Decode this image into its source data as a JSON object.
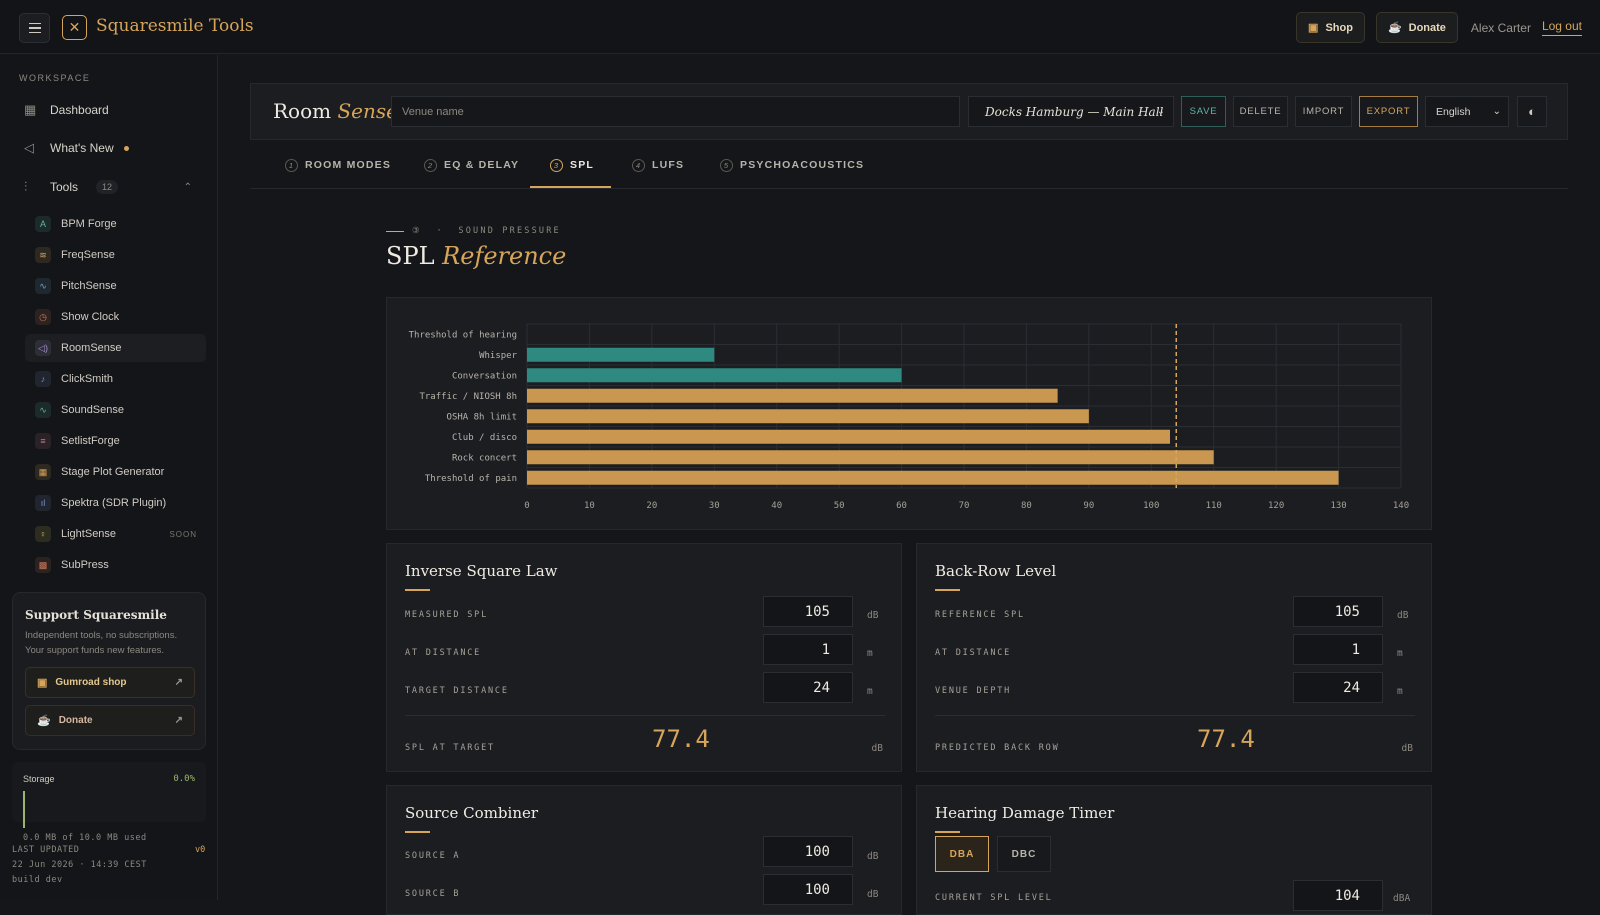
{
  "app": {
    "brand": "Squaresmile Tools",
    "shop_label": "Shop",
    "donate_label": "Donate",
    "user_name": "Alex Carter",
    "logout_label": "Log out"
  },
  "sidebar": {
    "workspace_label": "WORKSPACE",
    "nav": {
      "dashboard": "Dashboard",
      "whats_new": "What's New",
      "tools": "Tools",
      "tools_count": "12"
    },
    "tools": [
      {
        "label": "BPM Forge",
        "icon": "A",
        "color": "#5fb3a6"
      },
      {
        "label": "FreqSense",
        "icon": "≋",
        "color": "#d7a55a"
      },
      {
        "label": "PitchSense",
        "icon": "∿",
        "color": "#6fa3c7"
      },
      {
        "label": "Show Clock",
        "icon": "◷",
        "color": "#d07a5a"
      },
      {
        "label": "RoomSense",
        "icon": "◁)",
        "color": "#a493c9"
      },
      {
        "label": "ClickSmith",
        "icon": "♪",
        "color": "#7d8fd1"
      },
      {
        "label": "SoundSense",
        "icon": "∿",
        "color": "#5fb3a6"
      },
      {
        "label": "SetlistForge",
        "icon": "≡",
        "color": "#c77a8e"
      },
      {
        "label": "Stage Plot Generator",
        "icon": "▦",
        "color": "#d7a55a"
      },
      {
        "label": "Spektra (SDR Plugin)",
        "icon": "ıl",
        "color": "#7d8fd1"
      },
      {
        "label": "LightSense",
        "icon": "♀",
        "color": "#d7c55a",
        "badge": "SOON"
      },
      {
        "label": "SubPress",
        "icon": "▩",
        "color": "#d07a5a"
      }
    ],
    "support": {
      "title": "Support Squaresmile",
      "text": "Independent tools, no subscriptions. Your support funds new features.",
      "gumroad_label": "Gumroad shop",
      "donate_label": "Donate"
    },
    "storage": {
      "label": "Storage",
      "percent": "0.0%",
      "used_text": "0.0 MB of 10.0 MB used"
    },
    "last_updated_label": "LAST UPDATED",
    "last_updated_value": "22 Jun 2026 · 14:39 CEST",
    "build": "build dev",
    "version": "v0"
  },
  "header": {
    "title_plain": "Room",
    "title_accent": "Sense",
    "venue_placeholder": "Venue name",
    "venue_selected": "Docks Hamburg — Main Hall",
    "save": "SAVE",
    "delete": "DELETE",
    "import": "IMPORT",
    "export": "EXPORT",
    "language": "English"
  },
  "tabs": [
    {
      "num": "1",
      "label": "ROOM MODES"
    },
    {
      "num": "2",
      "label": "EQ & DELAY"
    },
    {
      "num": "3",
      "label": "SPL"
    },
    {
      "num": "4",
      "label": "LUFS"
    },
    {
      "num": "5",
      "label": "PSYCHOACOUSTICS"
    }
  ],
  "section": {
    "kicker_num": "③",
    "kicker_text": "SOUND PRESSURE",
    "title_plain": "SPL",
    "title_accent": "Reference"
  },
  "chart_data": {
    "type": "bar",
    "orientation": "horizontal",
    "categories": [
      "Threshold of hearing",
      "Whisper",
      "Conversation",
      "Traffic / NIOSH 8h",
      "OSHA 8h limit",
      "Club / disco",
      "Rock concert",
      "Threshold of pain"
    ],
    "values": [
      0,
      30,
      60,
      85,
      90,
      103,
      110,
      130
    ],
    "colors": [
      "#2e8a80",
      "#2e8a80",
      "#2e8a80",
      "#c9974f",
      "#c9974f",
      "#c9974f",
      "#c9974f",
      "#c9974f"
    ],
    "xlim": [
      0,
      140
    ],
    "xticks": [
      0,
      10,
      20,
      30,
      40,
      50,
      60,
      70,
      80,
      90,
      100,
      110,
      120,
      130,
      140
    ],
    "reference_line": 104,
    "grid": true
  },
  "inverse_square": {
    "title": "Inverse Square Law",
    "measured_label": "MEASURED SPL",
    "measured_value": "105",
    "measured_unit": "dB",
    "distance_label": "AT DISTANCE",
    "distance_value": "1",
    "distance_unit": "m",
    "target_label": "TARGET DISTANCE",
    "target_value": "24",
    "target_unit": "m",
    "result_label": "SPL AT TARGET",
    "result_value": "77.4",
    "result_unit": "dB"
  },
  "back_row": {
    "title": "Back-Row Level",
    "ref_label": "REFERENCE SPL",
    "ref_value": "105",
    "ref_unit": "dB",
    "distance_label": "AT DISTANCE",
    "distance_value": "1",
    "distance_unit": "m",
    "depth_label": "VENUE DEPTH",
    "depth_value": "24",
    "depth_unit": "m",
    "result_label": "PREDICTED BACK ROW",
    "result_value": "77.4",
    "result_unit": "dB"
  },
  "source_combiner": {
    "title": "Source Combiner",
    "a_label": "SOURCE A",
    "a_value": "100",
    "a_unit": "dB",
    "b_label": "SOURCE B",
    "b_value": "100",
    "b_unit": "dB"
  },
  "hearing_timer": {
    "title": "Hearing Damage Timer",
    "seg_a": "DBA",
    "seg_b": "DBC",
    "current_label": "CURRENT SPL LEVEL",
    "current_value": "104",
    "current_unit": "dBA"
  }
}
